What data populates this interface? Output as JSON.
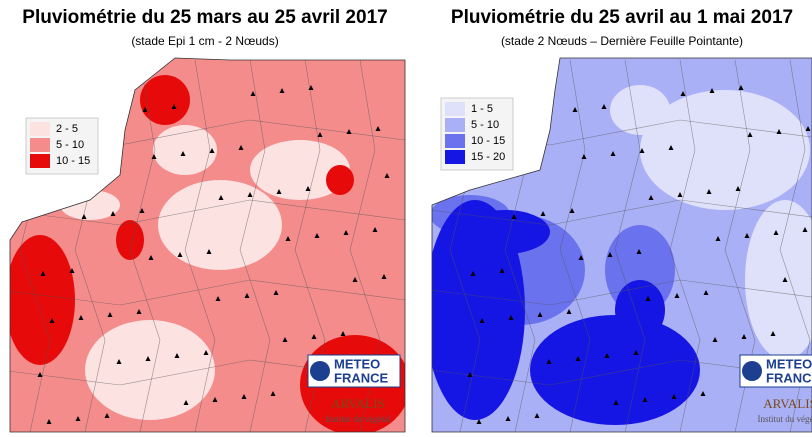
{
  "maps": [
    {
      "title": "Pluviométrie du 25 mars au 25 avril 2017",
      "subtitle": "(stade Epi 1 cm - 2 Nœuds)",
      "legend": [
        {
          "label": "2 - 5",
          "color": "#fde2e2"
        },
        {
          "label": "5 - 10",
          "color": "#f48c8c"
        },
        {
          "label": "10 - 15",
          "color": "#e60a0a"
        }
      ],
      "logo_top": "METEO",
      "logo_bottom": "FRANCE",
      "partner": "ARVALIS",
      "partner_tagline": "Institut du végétal"
    },
    {
      "title": "Pluviométrie du 25 avril au 1 mai 2017",
      "subtitle": "(stade 2 Nœuds – Dernière Feuille Pointante)",
      "legend": [
        {
          "label": "1 - 5",
          "color": "#dfe1fb"
        },
        {
          "label": "5 - 10",
          "color": "#aab0f5"
        },
        {
          "label": "10 - 15",
          "color": "#6a72ee"
        },
        {
          "label": "15 - 20",
          "color": "#1616e4"
        }
      ],
      "logo_top": "METEO",
      "logo_bottom": "FRANCE",
      "partner": "ARVALIS",
      "partner_tagline": "Institut du végétal"
    }
  ]
}
